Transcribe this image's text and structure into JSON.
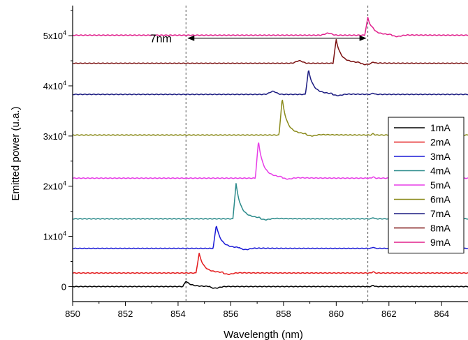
{
  "chart_data": {
    "type": "line",
    "title": "",
    "xlabel": "Wavelength (nm)",
    "ylabel": "Emitted power (u.a.)",
    "xlim": [
      850,
      865
    ],
    "ylim": [
      -3000,
      56000
    ],
    "x_ticks": [
      {
        "value": 850,
        "label": "850"
      },
      {
        "value": 852,
        "label": "852"
      },
      {
        "value": 854,
        "label": "854"
      },
      {
        "value": 856,
        "label": "856"
      },
      {
        "value": 858,
        "label": "858"
      },
      {
        "value": 860,
        "label": "860"
      },
      {
        "value": 862,
        "label": "862"
      },
      {
        "value": 864,
        "label": "864"
      }
    ],
    "y_ticks": [
      {
        "value": 0,
        "base": "0",
        "exp": ""
      },
      {
        "value": 10000,
        "base": "1x10",
        "exp": "4"
      },
      {
        "value": 20000,
        "base": "2x10",
        "exp": "4"
      },
      {
        "value": 30000,
        "base": "3x10",
        "exp": "4"
      },
      {
        "value": 40000,
        "base": "4x10",
        "exp": "4"
      },
      {
        "value": 50000,
        "base": "5x10",
        "exp": "4"
      }
    ],
    "grid": false,
    "legend_position": "right",
    "annotations": {
      "arrow_label": "7nm",
      "arrow_from": 854.3,
      "arrow_to": 861.2,
      "arrow_y": 49500,
      "dashed_lines_x": [
        854.3,
        861.2
      ]
    },
    "series": [
      {
        "name": "1mA",
        "color": "#000000",
        "baseline": 0,
        "peak_x": 854.3,
        "peak_height": 1100,
        "side_peak_x": 0,
        "side_peak_height": 0
      },
      {
        "name": "2mA",
        "color": "#e31a1c",
        "baseline": 2700,
        "peak_x": 854.8,
        "peak_height": 3900,
        "side_peak_x": 0,
        "side_peak_height": 0
      },
      {
        "name": "3mA",
        "color": "#1a1ad6",
        "baseline": 7600,
        "peak_x": 855.45,
        "peak_height": 4700,
        "side_peak_x": 0,
        "side_peak_height": 0
      },
      {
        "name": "4mA",
        "color": "#2a8a8a",
        "baseline": 13500,
        "peak_x": 856.2,
        "peak_height": 7000,
        "side_peak_x": 0,
        "side_peak_height": 0
      },
      {
        "name": "5mA",
        "color": "#e73de7",
        "baseline": 21600,
        "peak_x": 857.05,
        "peak_height": 7400,
        "side_peak_x": 0,
        "side_peak_height": 0
      },
      {
        "name": "6mA",
        "color": "#8a8a1a",
        "baseline": 30200,
        "peak_x": 857.95,
        "peak_height": 7300,
        "side_peak_x": 0,
        "side_peak_height": 0
      },
      {
        "name": "7mA",
        "color": "#1a1a80",
        "baseline": 38300,
        "peak_x": 858.95,
        "peak_height": 4900,
        "side_peak_x": 857.6,
        "side_peak_height": 600
      },
      {
        "name": "8mA",
        "color": "#7a1010",
        "baseline": 44500,
        "peak_x": 860.0,
        "peak_height": 4700,
        "side_peak_x": 858.6,
        "side_peak_height": 500
      },
      {
        "name": "9mA",
        "color": "#e0208c",
        "baseline": 50100,
        "peak_x": 861.2,
        "peak_height": 3500,
        "side_peak_x": 859.7,
        "side_peak_height": 400
      }
    ]
  }
}
